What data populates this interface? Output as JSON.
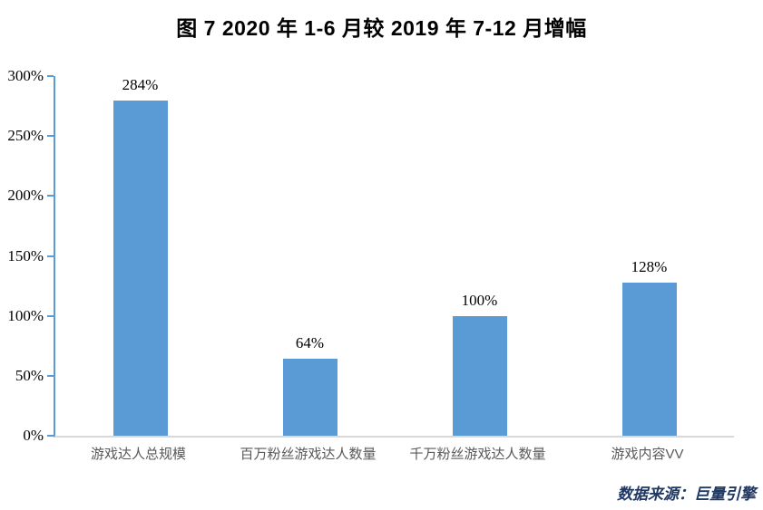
{
  "title": "图 7  2020 年 1-6 月较 2019 年 7-12 月增幅",
  "source": "数据来源：巨量引擎",
  "colors": {
    "bar": "#5B9BD5",
    "axis": "#5B9BD5",
    "baseline": "#D9D9D9",
    "source_text": "#1F3864"
  },
  "chart_data": {
    "type": "bar",
    "title": "图 7  2020 年 1-6 月较 2019 年 7-12 月增幅",
    "categories": [
      "游戏达人总规模",
      "百万粉丝游戏达人数量",
      "千万粉丝游戏达人数量",
      "游戏内容VV"
    ],
    "values": [
      284,
      64,
      100,
      128
    ],
    "labels": [
      "284%",
      "64%",
      "100%",
      "128%"
    ],
    "yticks": [
      "300%",
      "250%",
      "200%",
      "150%",
      "100%",
      "50%",
      "0%"
    ],
    "ylim": [
      0,
      300
    ],
    "xlabel": "",
    "ylabel": "",
    "grid": false,
    "legend": "none",
    "bar_color": "#5B9BD5",
    "source_note": "数据来源：巨量引擎"
  }
}
